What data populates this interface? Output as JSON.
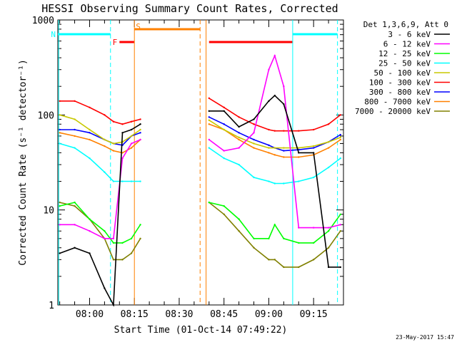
{
  "chart_data": {
    "type": "line",
    "title": "HESSI Observing Summary Count Rates, Corrected",
    "xlabel": "Start Time (01-Oct-14 07:49:22)",
    "ylabel": "Corrected Count Rate (s⁻¹ detector⁻¹)",
    "yscale": "log",
    "ylim": [
      1,
      1000
    ],
    "xlim": [
      "07:49:22",
      "09:25:00"
    ],
    "grid": false,
    "legend_position": "right",
    "legend_title": "Det 1,3,6,9, Att 0",
    "x_tick_labels": [
      "08:00",
      "08:15",
      "08:30",
      "08:45",
      "09:00",
      "09:15"
    ],
    "y_tick_labels": [
      "1",
      "10",
      "100",
      "1000"
    ],
    "timestamp": "23-May-2017 15:47",
    "annotations": [
      {
        "text": "F",
        "color": "#ff0000",
        "meaning": "flare flag",
        "start": "08:10",
        "end": "08:15"
      },
      {
        "text": "N",
        "color": "#00ffff",
        "meaning": "night",
        "start": "07:49:22",
        "end": "08:07"
      },
      {
        "text": "S",
        "color": "#ff8000",
        "meaning": "SAA",
        "start": "08:15",
        "end": "08:37"
      }
    ],
    "extra_flag_bars": [
      {
        "color": "#ff0000",
        "start": "08:40",
        "end": "09:08"
      },
      {
        "color": "#00ffff",
        "start": "09:08",
        "end": "09:23"
      }
    ],
    "time_markers": [
      {
        "time": "07:49:40",
        "color": "#00ffff",
        "style": "solid"
      },
      {
        "time": "08:07",
        "color": "#00ffff",
        "style": "dashed"
      },
      {
        "time": "08:15",
        "color": "#ff8000",
        "style": "solid"
      },
      {
        "time": "08:37",
        "color": "#ff8000",
        "style": "dashed"
      },
      {
        "time": "08:39",
        "color": "#ff8000",
        "style": "solid"
      },
      {
        "time": "09:08",
        "color": "#00ffff",
        "style": "solid"
      },
      {
        "time": "09:23",
        "color": "#00ffff",
        "style": "dashed"
      }
    ],
    "data_gap": [
      "08:18",
      "08:39"
    ],
    "x": [
      "07:50",
      "07:55",
      "08:00",
      "08:05",
      "08:08",
      "08:11",
      "08:14",
      "08:17",
      "08:40",
      "08:45",
      "08:50",
      "08:55",
      "09:00",
      "09:02",
      "09:05",
      "09:10",
      "09:15",
      "09:20",
      "09:24"
    ],
    "series": [
      {
        "name": "3 - 6 keV",
        "color": "#000000",
        "values": [
          3.5,
          4,
          3.5,
          1.5,
          0.8,
          65,
          70,
          80,
          110,
          110,
          75,
          90,
          140,
          160,
          130,
          40,
          40,
          2.5,
          2.5
        ]
      },
      {
        "name": "6 - 12 keV",
        "color": "#ff00ff",
        "values": [
          7,
          7,
          6,
          5,
          5,
          35,
          50,
          55,
          55,
          42,
          45,
          65,
          300,
          420,
          200,
          6.5,
          6.5,
          6.5,
          7
        ]
      },
      {
        "name": "12 - 25 keV",
        "color": "#00ff00",
        "values": [
          11,
          12,
          8,
          6,
          4.5,
          4.5,
          5,
          7,
          12,
          11,
          8,
          5,
          5,
          7,
          5,
          4.5,
          4.5,
          6,
          9
        ]
      },
      {
        "name": "25 - 50 keV",
        "color": "#00ffff",
        "values": [
          50,
          45,
          35,
          25,
          20,
          20,
          20,
          20,
          45,
          35,
          30,
          22,
          20,
          19,
          19,
          20,
          22,
          28,
          35
        ]
      },
      {
        "name": "50 - 100 keV",
        "color": "#c8c800",
        "values": [
          100,
          90,
          70,
          55,
          50,
          52,
          60,
          70,
          88,
          70,
          58,
          50,
          45,
          45,
          45,
          45,
          47,
          52,
          58
        ]
      },
      {
        "name": "100 - 300 keV",
        "color": "#ff0000",
        "values": [
          140,
          140,
          120,
          100,
          85,
          80,
          85,
          90,
          150,
          120,
          95,
          80,
          70,
          68,
          68,
          68,
          70,
          80,
          100
        ]
      },
      {
        "name": "300 - 800 keV",
        "color": "#0000ff",
        "values": [
          70,
          70,
          65,
          55,
          50,
          48,
          60,
          65,
          95,
          80,
          65,
          55,
          48,
          45,
          42,
          43,
          45,
          52,
          62
        ]
      },
      {
        "name": "800 - 7000 keV",
        "color": "#ff8000",
        "values": [
          65,
          60,
          55,
          47,
          42,
          40,
          45,
          55,
          80,
          70,
          55,
          45,
          40,
          38,
          36,
          36,
          38,
          45,
          55
        ]
      },
      {
        "name": "7000 - 20000 keV",
        "color": "#808000",
        "values": [
          12,
          11,
          8,
          5,
          3,
          3,
          3.5,
          5,
          12,
          9,
          6,
          4,
          3,
          3,
          2.5,
          2.5,
          3,
          4,
          6
        ]
      }
    ]
  }
}
